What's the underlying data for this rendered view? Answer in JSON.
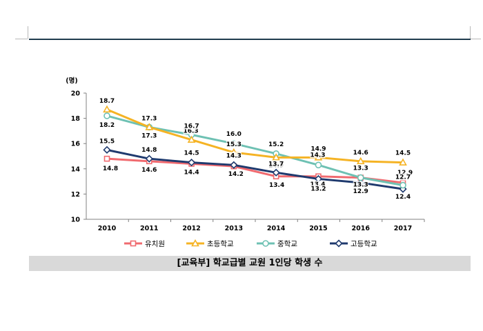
{
  "caption": "[교육부] 학교급별 교원 1인당 학생 수",
  "chart_data": {
    "type": "line",
    "ylabel": "(명)",
    "ylim": [
      10,
      20
    ],
    "yticks": [
      "10",
      "12",
      "14",
      "16",
      "18",
      "20"
    ],
    "categories": [
      "2010",
      "2011",
      "2012",
      "2013",
      "2014",
      "2015",
      "2016",
      "2017"
    ],
    "grid": false,
    "legend_position": "bottom",
    "series": [
      {
        "name": "유치원",
        "color": "#f06a6f",
        "marker": "square",
        "values": [
          14.8,
          14.6,
          14.4,
          14.2,
          13.4,
          13.4,
          13.3,
          12.9
        ],
        "labels": [
          "14.8",
          "14.6",
          "14.4",
          "14.2",
          "13.4",
          "13.4",
          "13.3",
          "12.9"
        ]
      },
      {
        "name": "초등학교",
        "color": "#f5b324",
        "marker": "triangle",
        "values": [
          18.7,
          17.3,
          16.3,
          15.3,
          14.9,
          14.9,
          14.6,
          14.5
        ],
        "labels": [
          "18.7",
          "17.3",
          "16.3",
          "15.3",
          "14.9",
          "14.9",
          "14.6",
          "14.5"
        ]
      },
      {
        "name": "중학교",
        "color": "#6ec1b3",
        "marker": "circle",
        "values": [
          18.2,
          17.3,
          16.7,
          16.0,
          15.2,
          14.3,
          13.3,
          12.7
        ],
        "labels": [
          "18.2",
          "17.3",
          "16.7",
          "16.0",
          "15.2",
          "14.3",
          "13.3",
          "12.7"
        ]
      },
      {
        "name": "고등학교",
        "color": "#1f3a6e",
        "marker": "diamond",
        "values": [
          15.5,
          14.8,
          14.5,
          14.3,
          13.7,
          13.2,
          12.9,
          12.4
        ],
        "labels": [
          "15.5",
          "14.8",
          "14.5",
          "14.3",
          "13.7",
          "13.2",
          "12.9",
          "12.4"
        ]
      }
    ]
  }
}
